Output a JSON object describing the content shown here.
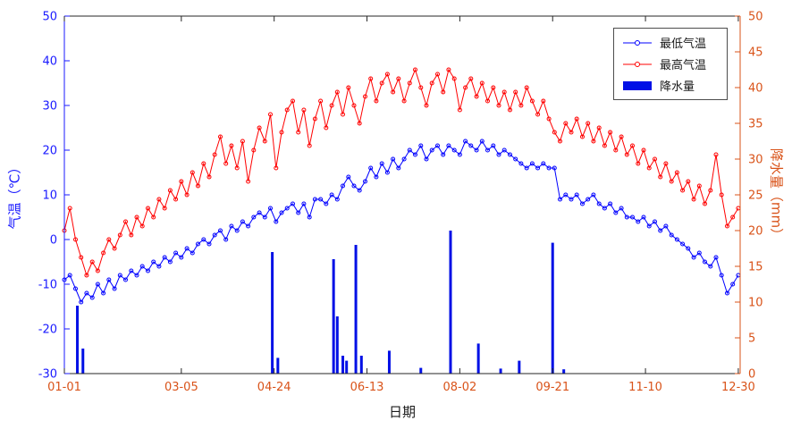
{
  "chart_data": {
    "type": "line+bar",
    "title": "",
    "xlabel": "日期",
    "ylabel_left": "气温（℃）",
    "ylabel_right": "降水量（mm）",
    "x_range": [
      1,
      365
    ],
    "ylim_left": [
      -30,
      50
    ],
    "ylim_right": [
      0,
      50
    ],
    "grid": false,
    "x_ticks": [
      {
        "day": 1,
        "label": "01-01"
      },
      {
        "day": 64,
        "label": "03-05"
      },
      {
        "day": 114,
        "label": "04-24"
      },
      {
        "day": 164,
        "label": "06-13"
      },
      {
        "day": 214,
        "label": "08-02"
      },
      {
        "day": 264,
        "label": "09-21"
      },
      {
        "day": 314,
        "label": "11-10"
      },
      {
        "day": 364,
        "label": "12-30"
      }
    ],
    "y_ticks_left": [
      50,
      40,
      30,
      20,
      10,
      0,
      -10,
      -20,
      -30
    ],
    "y_ticks_right": [
      50,
      45,
      40,
      35,
      30,
      25,
      20,
      15,
      10,
      5,
      0
    ],
    "days": [
      1,
      4,
      7,
      10,
      13,
      16,
      19,
      22,
      25,
      28,
      31,
      34,
      37,
      40,
      43,
      46,
      49,
      52,
      55,
      58,
      61,
      64,
      67,
      70,
      73,
      76,
      79,
      82,
      85,
      88,
      91,
      94,
      97,
      100,
      103,
      106,
      109,
      112,
      115,
      118,
      121,
      124,
      127,
      130,
      133,
      136,
      139,
      142,
      145,
      148,
      151,
      154,
      157,
      160,
      163,
      166,
      169,
      172,
      175,
      178,
      181,
      184,
      187,
      190,
      193,
      196,
      199,
      202,
      205,
      208,
      211,
      214,
      217,
      220,
      223,
      226,
      229,
      232,
      235,
      238,
      241,
      244,
      247,
      250,
      253,
      256,
      259,
      262,
      265,
      268,
      271,
      274,
      277,
      280,
      283,
      286,
      289,
      292,
      295,
      298,
      301,
      304,
      307,
      310,
      313,
      316,
      319,
      322,
      325,
      328,
      331,
      334,
      337,
      340,
      343,
      346,
      349,
      352,
      355,
      358,
      361,
      364
    ],
    "series": [
      {
        "name": "最低气温",
        "type": "line",
        "axis": "left",
        "color": "#0000ff",
        "values": [
          -9,
          -8,
          -11,
          -14,
          -12,
          -13,
          -10,
          -12,
          -9,
          -11,
          -8,
          -9,
          -7,
          -8,
          -6,
          -7,
          -5,
          -6,
          -4,
          -5,
          -3,
          -4,
          -2,
          -3,
          -1,
          0,
          -1,
          1,
          2,
          0,
          3,
          2,
          4,
          3,
          5,
          6,
          5,
          7,
          4,
          6,
          7,
          8,
          6,
          8,
          5,
          9,
          9,
          8,
          10,
          9,
          12,
          14,
          12,
          11,
          13,
          16,
          14,
          17,
          15,
          18,
          16,
          18,
          20,
          19,
          21,
          18,
          20,
          21,
          19,
          21,
          20,
          19,
          22,
          21,
          20,
          22,
          20,
          21,
          19,
          20,
          19,
          18,
          17,
          16,
          17,
          16,
          17,
          16,
          16,
          9,
          10,
          9,
          10,
          8,
          9,
          10,
          8,
          7,
          8,
          6,
          7,
          5,
          5,
          4,
          5,
          3,
          4,
          2,
          3,
          1,
          0,
          -1,
          -2,
          -4,
          -3,
          -5,
          -6,
          -4,
          -8,
          -12,
          -10,
          -8
        ]
      },
      {
        "name": "最高气温",
        "type": "line",
        "axis": "left",
        "color": "#ff0000",
        "values": [
          2,
          7,
          0,
          -4,
          -8,
          -5,
          -7,
          -3,
          0,
          -2,
          1,
          4,
          1,
          5,
          3,
          7,
          5,
          9,
          7,
          11,
          9,
          13,
          10,
          15,
          12,
          17,
          14,
          19,
          23,
          17,
          21,
          16,
          22,
          13,
          20,
          25,
          22,
          28,
          16,
          24,
          29,
          31,
          24,
          29,
          21,
          27,
          31,
          25,
          30,
          33,
          28,
          34,
          30,
          26,
          32,
          36,
          31,
          35,
          37,
          33,
          36,
          31,
          35,
          38,
          34,
          30,
          35,
          37,
          33,
          38,
          36,
          29,
          34,
          36,
          32,
          35,
          31,
          34,
          30,
          33,
          29,
          33,
          30,
          34,
          31,
          28,
          31,
          27,
          24,
          22,
          26,
          24,
          27,
          23,
          26,
          22,
          25,
          21,
          24,
          20,
          23,
          19,
          21,
          17,
          20,
          16,
          18,
          14,
          17,
          13,
          15,
          11,
          13,
          9,
          12,
          8,
          11,
          19,
          10,
          3,
          5,
          7
        ]
      },
      {
        "name": "降水量",
        "type": "bar",
        "axis": "right",
        "color": "#0010e6",
        "points": [
          [
            8,
            9.5
          ],
          [
            11,
            3.5
          ],
          [
            113,
            17.0
          ],
          [
            116,
            2.2
          ],
          [
            146,
            16.0
          ],
          [
            148,
            8.0
          ],
          [
            151,
            2.5
          ],
          [
            153,
            1.8
          ],
          [
            158,
            18.0
          ],
          [
            161,
            2.5
          ],
          [
            176,
            3.2
          ],
          [
            193,
            0.8
          ],
          [
            209,
            20.0
          ],
          [
            224,
            4.2
          ],
          [
            236,
            0.7
          ],
          [
            246,
            1.8
          ],
          [
            264,
            18.3
          ],
          [
            270,
            0.6
          ]
        ]
      }
    ],
    "legend": {
      "position": "top-right",
      "entries": [
        "最低气温",
        "最高气温",
        "降水量"
      ]
    },
    "colors": {
      "left_axis": "#1a1aff",
      "right_axis": "#d95319",
      "x_tick_label": "#d95319",
      "frame": "#262626"
    }
  }
}
